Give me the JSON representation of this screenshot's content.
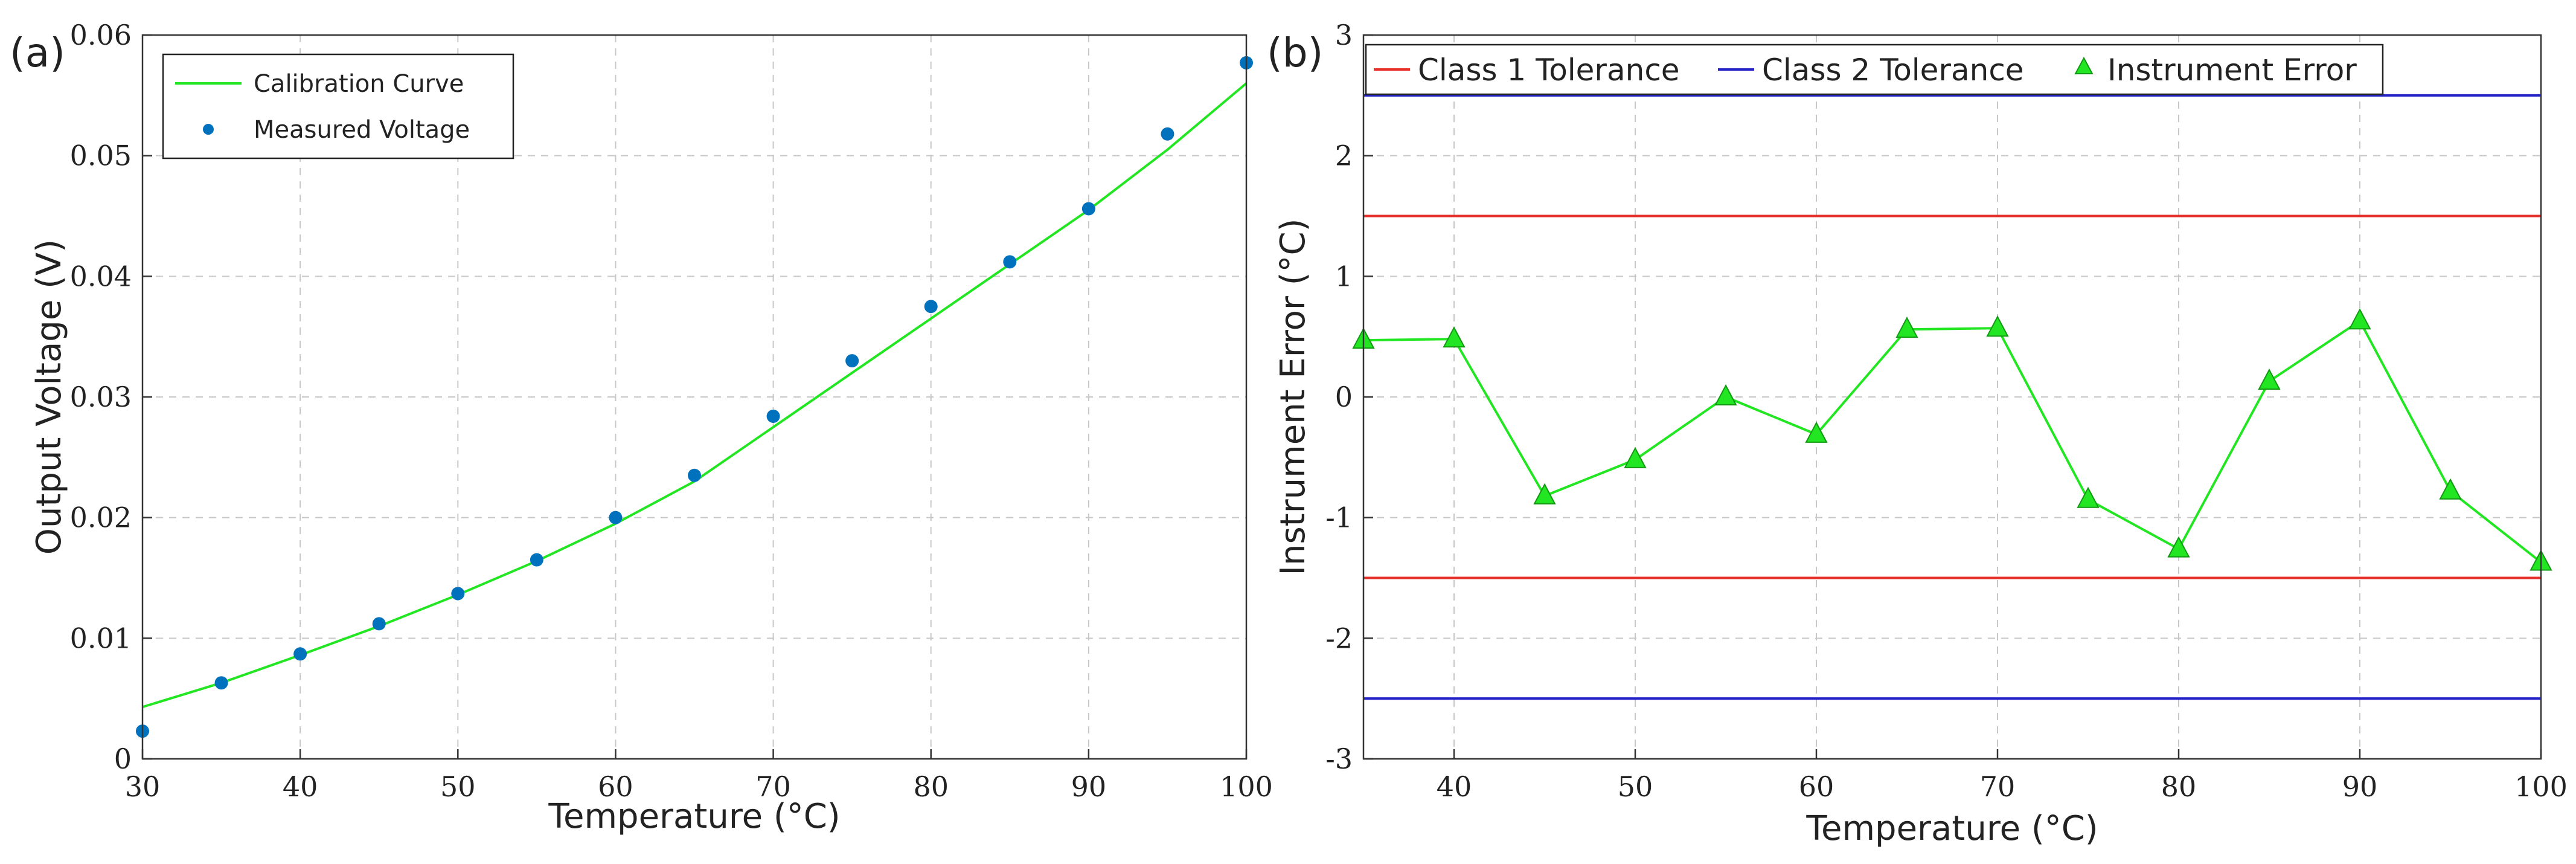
{
  "chart_data": [
    {
      "panel_label": "(a)",
      "type": "scatter",
      "xlabel": "Temperature (°C)",
      "ylabel": "Output Voltage (V)",
      "xlim": [
        30,
        100
      ],
      "ylim": [
        0,
        0.06
      ],
      "xticks": [
        30,
        40,
        50,
        60,
        70,
        80,
        90,
        100
      ],
      "xtick_labels": [
        "30",
        "40",
        "50",
        "60",
        "70",
        "80",
        "90",
        "100"
      ],
      "yticks": [
        0,
        0.01,
        0.02,
        0.03,
        0.04,
        0.05,
        0.06
      ],
      "ytick_labels": [
        "0",
        "0.01",
        "0.02",
        "0.03",
        "0.04",
        "0.05",
        "0.06"
      ],
      "grid": true,
      "legend_position": "top-left",
      "series": [
        {
          "name": "Calibration Curve",
          "kind": "line",
          "color": "#22e622",
          "x": [
            30,
            35,
            40,
            45,
            50,
            55,
            60,
            65,
            70,
            75,
            80,
            85,
            90,
            95,
            100
          ],
          "y": [
            0.0043,
            0.0063,
            0.0086,
            0.011,
            0.0136,
            0.0164,
            0.0195,
            0.023,
            0.0275,
            0.032,
            0.0365,
            0.041,
            0.0455,
            0.0505,
            0.056
          ]
        },
        {
          "name": "Measured Voltage",
          "kind": "scatter",
          "color": "#0072bd",
          "x": [
            30,
            35,
            40,
            45,
            50,
            55,
            60,
            65,
            70,
            75,
            80,
            85,
            90,
            95,
            100
          ],
          "y": [
            0.0023,
            0.0063,
            0.0087,
            0.0112,
            0.0137,
            0.0165,
            0.02,
            0.0235,
            0.0284,
            0.033,
            0.0375,
            0.0412,
            0.0456,
            0.0518,
            0.0577
          ]
        }
      ]
    },
    {
      "panel_label": "(b)",
      "type": "line",
      "xlabel": "Temperature (°C)",
      "ylabel": "Instrument Error (°C)",
      "xlim": [
        35,
        100
      ],
      "ylim": [
        -3,
        3
      ],
      "xticks": [
        40,
        50,
        60,
        70,
        80,
        90,
        100
      ],
      "xtick_labels": [
        "40",
        "50",
        "60",
        "70",
        "80",
        "90",
        "100"
      ],
      "yticks": [
        -3,
        -2,
        -1,
        0,
        1,
        2,
        3
      ],
      "ytick_labels": [
        "-3",
        "-2",
        "-1",
        "0",
        "1",
        "2",
        "3"
      ],
      "grid": true,
      "legend_position": "top",
      "series": [
        {
          "name": "Class 1 Tolerance",
          "kind": "hlines",
          "color": "#e8302a",
          "values": [
            1.5,
            -1.5
          ]
        },
        {
          "name": "Class 2 Tolerance",
          "kind": "hlines",
          "color": "#2323c8",
          "values": [
            2.5,
            -2.5
          ]
        },
        {
          "name": "Instrument Error",
          "kind": "line-triangle",
          "color": "#22e622",
          "x": [
            35,
            40,
            45,
            50,
            55,
            60,
            65,
            70,
            75,
            80,
            85,
            90,
            95,
            100
          ],
          "y": [
            0.47,
            0.48,
            -0.82,
            -0.52,
            0.0,
            -0.31,
            0.56,
            0.57,
            -0.85,
            -1.26,
            0.13,
            0.63,
            -0.78,
            -1.37
          ]
        }
      ]
    }
  ]
}
